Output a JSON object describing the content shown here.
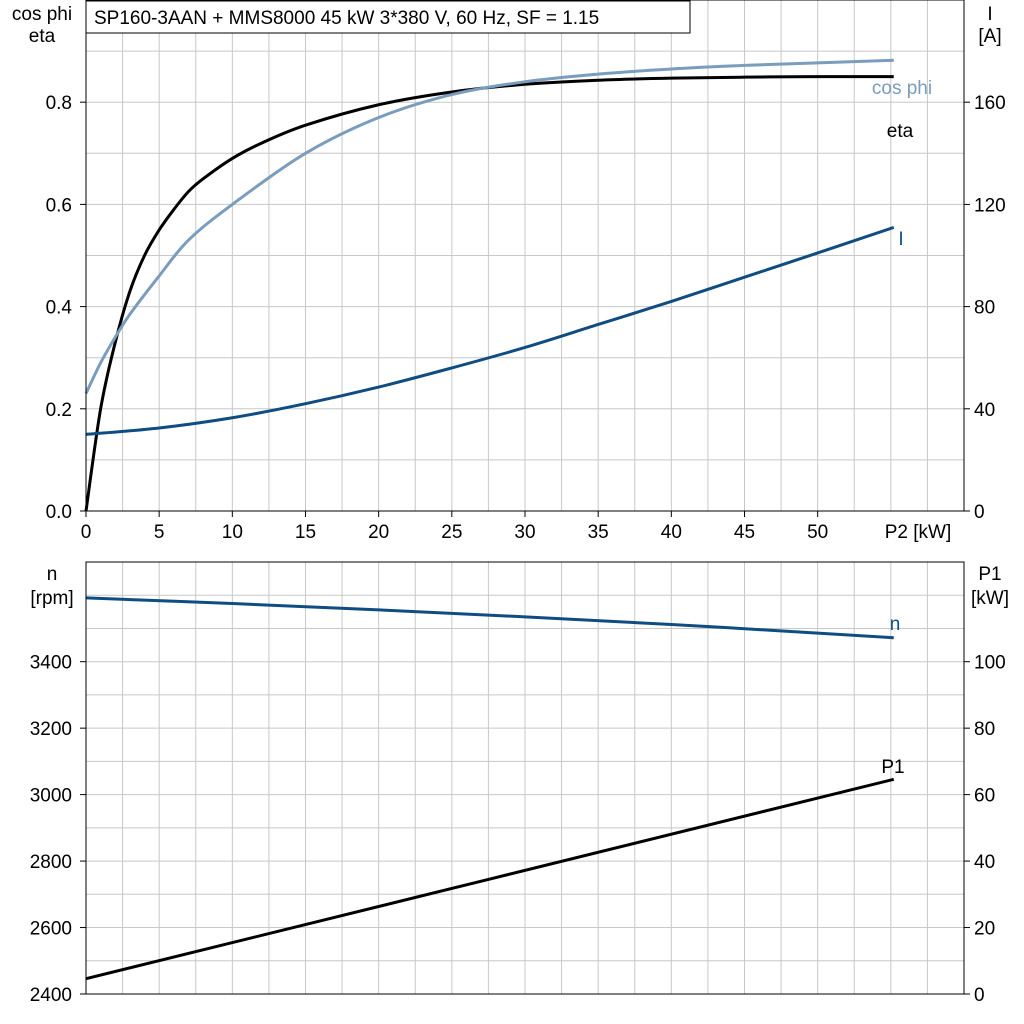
{
  "chart_title": "SP160-3AAN + MMS8000   45 kW   3*380 V, 60 Hz, SF = 1.15",
  "colors": {
    "eta": "#000000",
    "cos_phi": "#7a9cbd",
    "current": "#0f4c81",
    "n": "#0f4c81",
    "p1": "#000000",
    "grid": "#c8c8c8"
  },
  "chart_data": [
    {
      "type": "line",
      "xlabel": "P2 [kW]",
      "x_ticks": [
        "0",
        "5",
        "10",
        "15",
        "20",
        "25",
        "30",
        "35",
        "40",
        "45",
        "50"
      ],
      "xlim": [
        0,
        60
      ],
      "ylabel_left": [
        "cos phi",
        "eta"
      ],
      "y_ticks_left": [
        "0.0",
        "0.2",
        "0.4",
        "0.6",
        "0.8"
      ],
      "ylim_left": [
        0,
        1.0
      ],
      "ylabel_right": [
        "I",
        "[A]"
      ],
      "y_ticks_right": [
        "0",
        "40",
        "80",
        "120",
        "160"
      ],
      "ylim_right": [
        0,
        200
      ],
      "grid": true,
      "series": [
        {
          "name": "eta",
          "axis": "left",
          "x": [
            0,
            1,
            2,
            3,
            4,
            5,
            6,
            7,
            8,
            10,
            12,
            15,
            20,
            25,
            30,
            35,
            40,
            45,
            50,
            55.2
          ],
          "y": [
            0.0,
            0.2,
            0.33,
            0.43,
            0.5,
            0.55,
            0.59,
            0.625,
            0.65,
            0.69,
            0.72,
            0.755,
            0.795,
            0.82,
            0.835,
            0.843,
            0.847,
            0.849,
            0.85,
            0.85
          ]
        },
        {
          "name": "cos phi",
          "axis": "left",
          "x": [
            0,
            1,
            2,
            3,
            5,
            7,
            10,
            15,
            20,
            25,
            30,
            35,
            40,
            45,
            50,
            55.2
          ],
          "y": [
            0.23,
            0.29,
            0.34,
            0.385,
            0.46,
            0.53,
            0.6,
            0.7,
            0.77,
            0.815,
            0.84,
            0.855,
            0.865,
            0.872,
            0.877,
            0.882
          ]
        },
        {
          "name": "I",
          "axis": "right",
          "x": [
            0,
            5,
            10,
            15,
            20,
            25,
            30,
            35,
            40,
            45,
            50,
            55.2
          ],
          "y": [
            30,
            32.5,
            36.5,
            42,
            48.5,
            56,
            64,
            73,
            82,
            91.5,
            101,
            111
          ]
        }
      ]
    },
    {
      "type": "line",
      "xlim": [
        0,
        60
      ],
      "ylabel_left": [
        "n",
        "[rpm]"
      ],
      "y_ticks_left": [
        "2400",
        "2600",
        "2800",
        "3000",
        "3200",
        "3400"
      ],
      "ylim_left": [
        2400,
        3700
      ],
      "ylabel_right": [
        "P1",
        "[kW]"
      ],
      "y_ticks_right": [
        "0",
        "20",
        "40",
        "60",
        "80",
        "100"
      ],
      "ylim_right": [
        0,
        130
      ],
      "grid": true,
      "series": [
        {
          "name": "n",
          "axis": "left",
          "x": [
            0,
            10,
            20,
            30,
            40,
            50,
            55.2
          ],
          "y": [
            3592,
            3575,
            3556,
            3535,
            3512,
            3486,
            3472
          ]
        },
        {
          "name": "P1",
          "axis": "right",
          "x": [
            0,
            55.2
          ],
          "y": [
            4.6,
            64.6
          ]
        }
      ]
    }
  ]
}
